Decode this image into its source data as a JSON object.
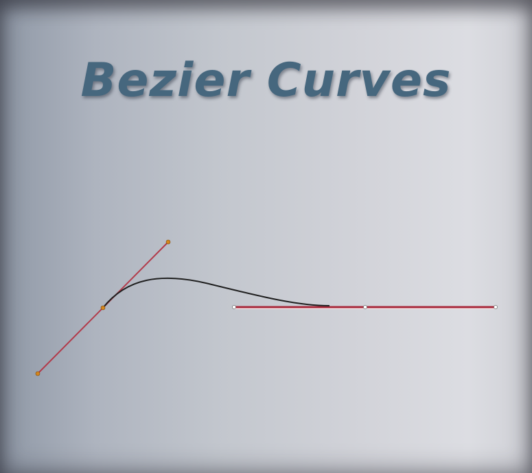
{
  "title": "Bezier Curves",
  "colors": {
    "title": "#46677e",
    "handle_line": "#b23a4a",
    "curve": "#1f1f1f",
    "start_anchor": "#d4851c",
    "end_anchor": "#ffffff"
  }
}
